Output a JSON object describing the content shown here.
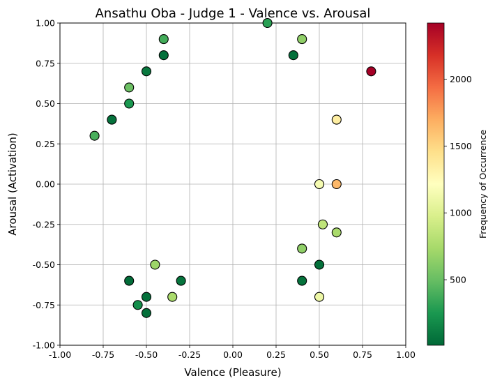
{
  "chart_data": {
    "type": "scatter",
    "title": "Ansathu Oba - Judge 1 - Valence vs. Arousal",
    "xlabel": "Valence (Pleasure)",
    "ylabel": "Arousal (Activation)",
    "xlim": [
      -1,
      1
    ],
    "ylim": [
      -1,
      1
    ],
    "xticks": [
      "-1.00",
      "-0.75",
      "-0.50",
      "-0.25",
      "0.00",
      "0.25",
      "0.50",
      "0.75",
      "1.00"
    ],
    "yticks": [
      "-1.00",
      "-0.75",
      "-0.50",
      "-0.25",
      "0.00",
      "0.25",
      "0.50",
      "0.75",
      "1.00"
    ],
    "grid": true,
    "colormap": "RdYlGn_r",
    "colorbar": {
      "label": "Frequency of Occurrence",
      "range": [
        10,
        2420
      ],
      "ticks": [
        500,
        1000,
        1500,
        2000
      ]
    },
    "points": [
      {
        "x": -0.8,
        "y": 0.3,
        "frequency": 400
      },
      {
        "x": -0.7,
        "y": 0.4,
        "frequency": 60
      },
      {
        "x": -0.6,
        "y": 0.5,
        "frequency": 250
      },
      {
        "x": -0.6,
        "y": 0.6,
        "frequency": 520
      },
      {
        "x": -0.5,
        "y": 0.7,
        "frequency": 90
      },
      {
        "x": -0.4,
        "y": 0.8,
        "frequency": 50
      },
      {
        "x": -0.4,
        "y": 0.9,
        "frequency": 380
      },
      {
        "x": 0.2,
        "y": 1.0,
        "frequency": 300
      },
      {
        "x": 0.35,
        "y": 0.8,
        "frequency": 50
      },
      {
        "x": 0.4,
        "y": 0.9,
        "frequency": 650
      },
      {
        "x": 0.8,
        "y": 0.7,
        "frequency": 2420
      },
      {
        "x": 0.6,
        "y": 0.4,
        "frequency": 1350
      },
      {
        "x": 0.5,
        "y": 0.0,
        "frequency": 1150
      },
      {
        "x": 0.6,
        "y": 0.0,
        "frequency": 1650
      },
      {
        "x": 0.52,
        "y": -0.25,
        "frequency": 850
      },
      {
        "x": 0.6,
        "y": -0.3,
        "frequency": 750
      },
      {
        "x": 0.4,
        "y": -0.4,
        "frequency": 650
      },
      {
        "x": 0.5,
        "y": -0.5,
        "frequency": 50
      },
      {
        "x": 0.4,
        "y": -0.6,
        "frequency": 60
      },
      {
        "x": 0.5,
        "y": -0.7,
        "frequency": 1100
      },
      {
        "x": -0.45,
        "y": -0.5,
        "frequency": 700
      },
      {
        "x": -0.6,
        "y": -0.6,
        "frequency": 30
      },
      {
        "x": -0.3,
        "y": -0.6,
        "frequency": 70
      },
      {
        "x": -0.35,
        "y": -0.7,
        "frequency": 750
      },
      {
        "x": -0.5,
        "y": -0.7,
        "frequency": 50
      },
      {
        "x": -0.55,
        "y": -0.75,
        "frequency": 200
      },
      {
        "x": -0.5,
        "y": -0.8,
        "frequency": 50
      }
    ]
  }
}
